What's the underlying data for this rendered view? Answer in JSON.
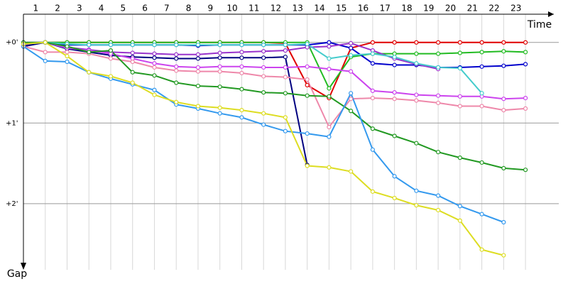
{
  "chart_data": {
    "type": "line",
    "x_label": "Time",
    "y_label": "Gap",
    "x": [
      0,
      1,
      2,
      3,
      4,
      5,
      6,
      7,
      8,
      9,
      10,
      11,
      12,
      13,
      14,
      15,
      16,
      17,
      18,
      19,
      20,
      21,
      22,
      23
    ],
    "xlim": [
      0,
      24.2
    ],
    "xticks": [
      1,
      2,
      3,
      4,
      5,
      6,
      7,
      8,
      9,
      10,
      11,
      12,
      13,
      14,
      15,
      16,
      17,
      18,
      19,
      20,
      21,
      22,
      23
    ],
    "ylim": [
      -0.35,
      2.82
    ],
    "y_inverted": true,
    "yticks": [
      {
        "value": 0,
        "label": "+0'"
      },
      {
        "value": 1,
        "label": "+1'"
      },
      {
        "value": 2,
        "label": "+2'"
      }
    ],
    "grid": true,
    "series": [
      {
        "color": "#e00000",
        "values": [
          0.02,
          0,
          0,
          0,
          0,
          0,
          0,
          0,
          0,
          0,
          0,
          0,
          0.01,
          0.53,
          0.69,
          0.07,
          0,
          0,
          0,
          0,
          0,
          0,
          0,
          0
        ]
      },
      {
        "color": "#22bb22",
        "values": [
          0.01,
          0,
          0,
          0,
          0,
          0,
          0,
          0,
          0,
          0,
          0,
          0,
          0,
          0,
          0.57,
          0.18,
          0.14,
          0.14,
          0.14,
          0.14,
          0.13,
          0.12,
          0.11,
          0.12
        ]
      },
      {
        "color": "#0000cc",
        "values": [
          0.05,
          0,
          0.03,
          0.03,
          0.03,
          0.03,
          0.03,
          0.03,
          0.04,
          0.03,
          0.03,
          0.03,
          0.03,
          0.03,
          0,
          0.07,
          0.26,
          0.28,
          0.28,
          0.31,
          0.31,
          0.3,
          0.29,
          0.27
        ]
      },
      {
        "color": "#9933cc",
        "values": [
          0.04,
          0,
          0.06,
          0.09,
          0.12,
          0.13,
          0.14,
          0.15,
          0.15,
          0.13,
          0.12,
          0.11,
          0.1,
          0.06,
          0.05,
          0.01,
          0.1,
          0.2,
          0.27,
          0.33,
          null,
          null,
          null,
          null
        ]
      },
      {
        "color": "#000080",
        "values": [
          0.05,
          0,
          0.08,
          0.12,
          0.16,
          0.18,
          0.19,
          0.2,
          0.2,
          0.19,
          0.19,
          0.19,
          0.18,
          1.52,
          null,
          null,
          null,
          null,
          null,
          null,
          null,
          null,
          null,
          null
        ]
      },
      {
        "color": "#cc44ee",
        "values": [
          0,
          0,
          0.07,
          0.1,
          0.14,
          0.2,
          0.26,
          0.3,
          0.31,
          0.3,
          0.3,
          0.31,
          0.31,
          0.3,
          0.33,
          0.36,
          0.6,
          0.62,
          0.65,
          0.66,
          0.67,
          0.67,
          0.7,
          0.69
        ]
      },
      {
        "color": "#ee88aa",
        "values": [
          0.05,
          0.12,
          0.12,
          0.14,
          0.2,
          0.24,
          0.31,
          0.35,
          0.36,
          0.36,
          0.38,
          0.42,
          0.43,
          0.46,
          1.05,
          0.7,
          0.69,
          0.7,
          0.72,
          0.75,
          0.79,
          0.79,
          0.84,
          0.82
        ]
      },
      {
        "color": "#44cccc",
        "values": [
          0.02,
          0,
          0.02,
          0.03,
          0.03,
          0.03,
          0.03,
          0.03,
          0.03,
          0.03,
          0.03,
          0.03,
          0.03,
          0.02,
          0.2,
          0.16,
          0.14,
          0.18,
          0.26,
          0.31,
          0.32,
          0.63,
          null,
          null
        ]
      },
      {
        "color": "#229922",
        "values": [
          0,
          0,
          0.05,
          0.12,
          0.1,
          0.37,
          0.41,
          0.5,
          0.54,
          0.55,
          0.58,
          0.62,
          0.63,
          0.66,
          0.67,
          0.85,
          1.07,
          1.16,
          1.25,
          1.36,
          1.43,
          1.49,
          1.56,
          1.58
        ]
      },
      {
        "color": "#3399ee",
        "values": [
          0.05,
          0.23,
          0.24,
          0.37,
          0.45,
          0.52,
          0.59,
          0.77,
          0.82,
          0.88,
          0.93,
          1.02,
          1.1,
          1.13,
          1.17,
          0.63,
          1.33,
          1.66,
          1.84,
          1.9,
          2.03,
          2.13,
          2.23,
          null
        ]
      },
      {
        "color": "#dddd22",
        "values": [
          0.02,
          0,
          0.17,
          0.37,
          0.42,
          0.5,
          0.65,
          0.74,
          0.79,
          0.81,
          0.84,
          0.88,
          0.93,
          1.53,
          1.55,
          1.6,
          1.85,
          1.93,
          2.02,
          2.08,
          2.21,
          2.57,
          2.64,
          null
        ]
      }
    ]
  }
}
